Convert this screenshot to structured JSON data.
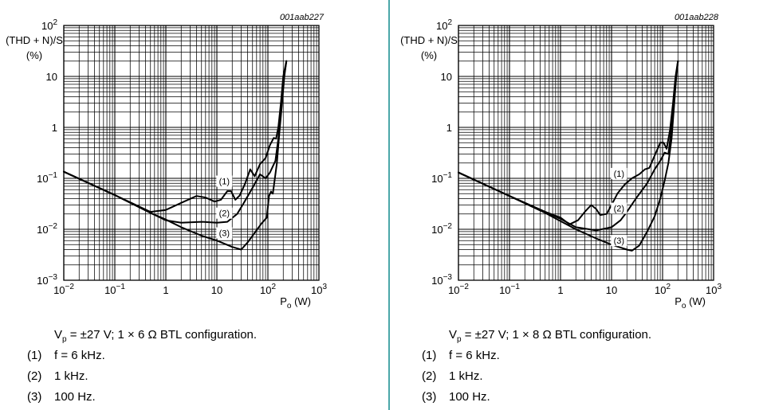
{
  "chart_data": [
    {
      "type": "line",
      "code": "001aab227",
      "xscale": "log",
      "yscale": "log",
      "xlim": [
        0.01,
        1000
      ],
      "ylim": [
        0.001,
        100
      ],
      "grid": true,
      "ylabel_line1": "(THD + N)/S",
      "ylabel_line2": "(%)",
      "xlabel_main": "P",
      "xlabel_sub": "o",
      "xlabel_unit": " (W)",
      "x_ticks": [
        {
          "base": "10",
          "exp": "−2"
        },
        {
          "base": "10",
          "exp": "−1"
        },
        {
          "base": "1",
          "exp": ""
        },
        {
          "base": "10",
          "exp": ""
        },
        {
          "base": "10",
          "exp": "2"
        },
        {
          "base": "10",
          "exp": "3"
        }
      ],
      "y_ticks": [
        {
          "base": "10",
          "exp": "−3"
        },
        {
          "base": "10",
          "exp": "−2"
        },
        {
          "base": "10",
          "exp": "−1"
        },
        {
          "base": "1",
          "exp": ""
        },
        {
          "base": "10",
          "exp": ""
        },
        {
          "base": "10",
          "exp": "2"
        }
      ],
      "caption_pre": "V",
      "caption_sub": "p",
      "caption_post": " = ±27 V; 1 × 6 Ω BTL configuration.",
      "legend": [
        {
          "num": "(1)",
          "text": "f = 6 kHz."
        },
        {
          "num": "(2)",
          "text": "1 kHz."
        },
        {
          "num": "(3)",
          "text": "100 Hz."
        }
      ],
      "series": [
        {
          "label": "(1)",
          "points": [
            [
              0.01,
              0.135
            ],
            [
              0.1,
              0.047
            ],
            [
              0.5,
              0.022
            ],
            [
              1,
              0.024
            ],
            [
              2,
              0.033
            ],
            [
              4,
              0.045
            ],
            [
              6,
              0.042
            ],
            [
              9,
              0.035
            ],
            [
              12,
              0.038
            ],
            [
              16,
              0.056
            ],
            [
              19,
              0.056
            ],
            [
              23,
              0.038
            ],
            [
              28,
              0.046
            ],
            [
              36,
              0.08
            ],
            [
              45,
              0.15
            ],
            [
              55,
              0.11
            ],
            [
              70,
              0.19
            ],
            [
              90,
              0.25
            ],
            [
              110,
              0.45
            ],
            [
              130,
              0.62
            ],
            [
              145,
              0.6
            ],
            [
              160,
              1.0
            ],
            [
              180,
              3
            ],
            [
              200,
              10
            ],
            [
              230,
              20
            ]
          ]
        },
        {
          "label": "(2)",
          "points": [
            [
              0.01,
              0.135
            ],
            [
              0.1,
              0.047
            ],
            [
              0.5,
              0.021
            ],
            [
              1,
              0.015
            ],
            [
              2,
              0.0135
            ],
            [
              5,
              0.014
            ],
            [
              10,
              0.0135
            ],
            [
              16,
              0.014
            ],
            [
              25,
              0.02
            ],
            [
              35,
              0.035
            ],
            [
              50,
              0.065
            ],
            [
              70,
              0.12
            ],
            [
              90,
              0.1
            ],
            [
              110,
              0.13
            ],
            [
              140,
              0.22
            ],
            [
              160,
              0.6
            ],
            [
              180,
              2
            ],
            [
              200,
              8
            ],
            [
              230,
              20
            ]
          ]
        },
        {
          "label": "(3)",
          "points": [
            [
              0.01,
              0.135
            ],
            [
              0.1,
              0.047
            ],
            [
              0.5,
              0.021
            ],
            [
              1,
              0.0155
            ],
            [
              2,
              0.011
            ],
            [
              5,
              0.0075
            ],
            [
              10,
              0.006
            ],
            [
              20,
              0.0045
            ],
            [
              30,
              0.004
            ],
            [
              40,
              0.0055
            ],
            [
              55,
              0.0085
            ],
            [
              75,
              0.013
            ],
            [
              95,
              0.017
            ],
            [
              105,
              0.045
            ],
            [
              115,
              0.055
            ],
            [
              125,
              0.05
            ],
            [
              150,
              0.2
            ],
            [
              170,
              0.9
            ],
            [
              190,
              3
            ],
            [
              210,
              10
            ],
            [
              230,
              20
            ]
          ]
        }
      ],
      "annotations": [
        {
          "text": "(1)",
          "x": 14,
          "y": 0.085
        },
        {
          "text": "(2)",
          "x": 14,
          "y": 0.02
        },
        {
          "text": "(3)",
          "x": 14,
          "y": 0.0082
        }
      ]
    },
    {
      "type": "line",
      "code": "001aab228",
      "xscale": "log",
      "yscale": "log",
      "xlim": [
        0.01,
        1000
      ],
      "ylim": [
        0.001,
        100
      ],
      "grid": true,
      "ylabel_line1": "(THD + N)/S",
      "ylabel_line2": "(%)",
      "xlabel_main": "P",
      "xlabel_sub": "o",
      "xlabel_unit": " (W)",
      "x_ticks": [
        {
          "base": "10",
          "exp": "−2"
        },
        {
          "base": "10",
          "exp": "−1"
        },
        {
          "base": "1",
          "exp": ""
        },
        {
          "base": "10",
          "exp": ""
        },
        {
          "base": "10",
          "exp": "2"
        },
        {
          "base": "10",
          "exp": "3"
        }
      ],
      "y_ticks": [
        {
          "base": "10",
          "exp": "−3"
        },
        {
          "base": "10",
          "exp": "−2"
        },
        {
          "base": "10",
          "exp": "−1"
        },
        {
          "base": "1",
          "exp": ""
        },
        {
          "base": "10",
          "exp": ""
        },
        {
          "base": "10",
          "exp": "2"
        }
      ],
      "caption_pre": "V",
      "caption_sub": "p",
      "caption_post": " = ±27 V; 1 × 8 Ω BTL configuration.",
      "legend": [
        {
          "num": "(1)",
          "text": "f = 6 kHz."
        },
        {
          "num": "(2)",
          "text": "1 kHz."
        },
        {
          "num": "(3)",
          "text": "100 Hz."
        }
      ],
      "series": [
        {
          "label": "(1)",
          "points": [
            [
              0.01,
              0.13
            ],
            [
              0.1,
              0.045
            ],
            [
              0.5,
              0.022
            ],
            [
              1,
              0.017
            ],
            [
              1.5,
              0.0125
            ],
            [
              2.2,
              0.015
            ],
            [
              3,
              0.022
            ],
            [
              4,
              0.03
            ],
            [
              5,
              0.025
            ],
            [
              6,
              0.019
            ],
            [
              8,
              0.02
            ],
            [
              10,
              0.03
            ],
            [
              13,
              0.05
            ],
            [
              18,
              0.075
            ],
            [
              25,
              0.1
            ],
            [
              35,
              0.12
            ],
            [
              45,
              0.15
            ],
            [
              55,
              0.16
            ],
            [
              70,
              0.28
            ],
            [
              90,
              0.5
            ],
            [
              105,
              0.5
            ],
            [
              120,
              0.38
            ],
            [
              140,
              0.9
            ],
            [
              160,
              3
            ],
            [
              180,
              10
            ],
            [
              200,
              20
            ]
          ]
        },
        {
          "label": "(2)",
          "points": [
            [
              0.01,
              0.13
            ],
            [
              0.1,
              0.045
            ],
            [
              0.5,
              0.022
            ],
            [
              1,
              0.016
            ],
            [
              2,
              0.011
            ],
            [
              5,
              0.0095
            ],
            [
              10,
              0.011
            ],
            [
              15,
              0.015
            ],
            [
              20,
              0.022
            ],
            [
              30,
              0.04
            ],
            [
              50,
              0.08
            ],
            [
              70,
              0.15
            ],
            [
              90,
              0.22
            ],
            [
              110,
              0.32
            ],
            [
              130,
              0.3
            ],
            [
              150,
              1
            ],
            [
              170,
              4
            ],
            [
              190,
              12
            ],
            [
              200,
              20
            ]
          ]
        },
        {
          "label": "(3)",
          "points": [
            [
              0.01,
              0.13
            ],
            [
              0.1,
              0.045
            ],
            [
              0.5,
              0.021
            ],
            [
              1,
              0.0145
            ],
            [
              2,
              0.01
            ],
            [
              5,
              0.0066
            ],
            [
              10,
              0.005
            ],
            [
              20,
              0.004
            ],
            [
              25,
              0.0038
            ],
            [
              35,
              0.0048
            ],
            [
              50,
              0.009
            ],
            [
              70,
              0.018
            ],
            [
              90,
              0.04
            ],
            [
              110,
              0.09
            ],
            [
              130,
              0.2
            ],
            [
              150,
              0.6
            ],
            [
              170,
              3
            ],
            [
              185,
              10
            ],
            [
              200,
              20
            ]
          ]
        }
      ],
      "annotations": [
        {
          "text": "(1)",
          "x": 14,
          "y": 0.12
        },
        {
          "text": "(2)",
          "x": 14,
          "y": 0.025
        },
        {
          "text": "(3)",
          "x": 14,
          "y": 0.0058
        }
      ]
    }
  ]
}
